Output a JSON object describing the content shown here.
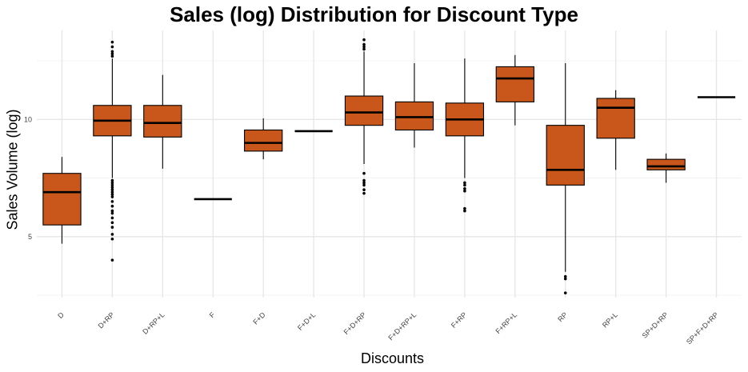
{
  "chart_data": {
    "type": "box",
    "title": "Sales (log) Distribution for Discount Type",
    "xlabel": "Discounts",
    "ylabel": "Sales Volume (log)",
    "ylim": [
      2.4,
      13.8
    ],
    "yticks": [
      5,
      10
    ],
    "grid": true,
    "legend": "none",
    "box_color": "#C9571B",
    "categories": [
      "D",
      "D+RP",
      "D+RP+L",
      "F",
      "F+D",
      "F+D+L",
      "F+D+RP",
      "F+D+RP+L",
      "F+RP",
      "F+RP+L",
      "RP",
      "RP+L",
      "SP+D+RP",
      "SP+F+D+RP"
    ],
    "boxes": [
      {
        "category": "D",
        "min": 4.7,
        "q1": 5.5,
        "median": 6.9,
        "q3": 7.7,
        "max": 8.4,
        "outliers": []
      },
      {
        "category": "D+RP",
        "min": 7.5,
        "q1": 9.3,
        "median": 9.95,
        "q3": 10.6,
        "max": 12.6,
        "outliers": [
          13.3,
          13.1,
          12.9,
          12.8,
          12.7,
          7.4,
          7.3,
          7.2,
          7.1,
          7.0,
          6.9,
          6.8,
          6.7,
          6.5,
          6.3,
          6.1,
          6.0,
          5.8,
          5.6,
          5.4,
          5.1,
          4.9,
          4.0
        ]
      },
      {
        "category": "D+RP+L",
        "min": 7.9,
        "q1": 9.25,
        "median": 9.85,
        "q3": 10.6,
        "max": 11.9,
        "outliers": []
      },
      {
        "category": "F",
        "min": 6.6,
        "q1": 6.6,
        "median": 6.6,
        "q3": 6.6,
        "max": 6.6,
        "outliers": []
      },
      {
        "category": "F+D",
        "min": 8.3,
        "q1": 8.65,
        "median": 9.0,
        "q3": 9.55,
        "max": 10.05,
        "outliers": []
      },
      {
        "category": "F+D+L",
        "min": 9.5,
        "q1": 9.5,
        "median": 9.5,
        "q3": 9.5,
        "max": 9.5,
        "outliers": []
      },
      {
        "category": "F+D+RP",
        "min": 8.1,
        "q1": 9.75,
        "median": 10.3,
        "q3": 11.0,
        "max": 12.9,
        "outliers": [
          13.4,
          13.2,
          13.1,
          13.0,
          7.7,
          7.4,
          7.3,
          7.2,
          7.0,
          6.85
        ]
      },
      {
        "category": "F+D+RP+L",
        "min": 8.8,
        "q1": 9.55,
        "median": 10.1,
        "q3": 10.75,
        "max": 12.4,
        "outliers": []
      },
      {
        "category": "F+RP",
        "min": 7.5,
        "q1": 9.3,
        "median": 10.0,
        "q3": 10.7,
        "max": 12.6,
        "outliers": [
          7.3,
          7.2,
          7.05,
          6.95,
          6.2,
          6.1
        ]
      },
      {
        "category": "F+RP+L",
        "min": 9.75,
        "q1": 10.75,
        "median": 11.75,
        "q3": 12.25,
        "max": 12.75,
        "outliers": []
      },
      {
        "category": "RP",
        "min": 3.5,
        "q1": 7.2,
        "median": 7.85,
        "q3": 9.75,
        "max": 12.4,
        "outliers": [
          3.3,
          3.2,
          2.6
        ]
      },
      {
        "category": "RP+L",
        "min": 7.85,
        "q1": 9.2,
        "median": 10.5,
        "q3": 10.9,
        "max": 11.25,
        "outliers": []
      },
      {
        "category": "SP+D+RP",
        "min": 7.3,
        "q1": 7.85,
        "median": 8.0,
        "q3": 8.3,
        "max": 8.55,
        "outliers": []
      },
      {
        "category": "SP+F+D+RP",
        "min": 10.95,
        "q1": 10.95,
        "median": 10.95,
        "q3": 10.95,
        "max": 10.95,
        "outliers": []
      }
    ]
  }
}
